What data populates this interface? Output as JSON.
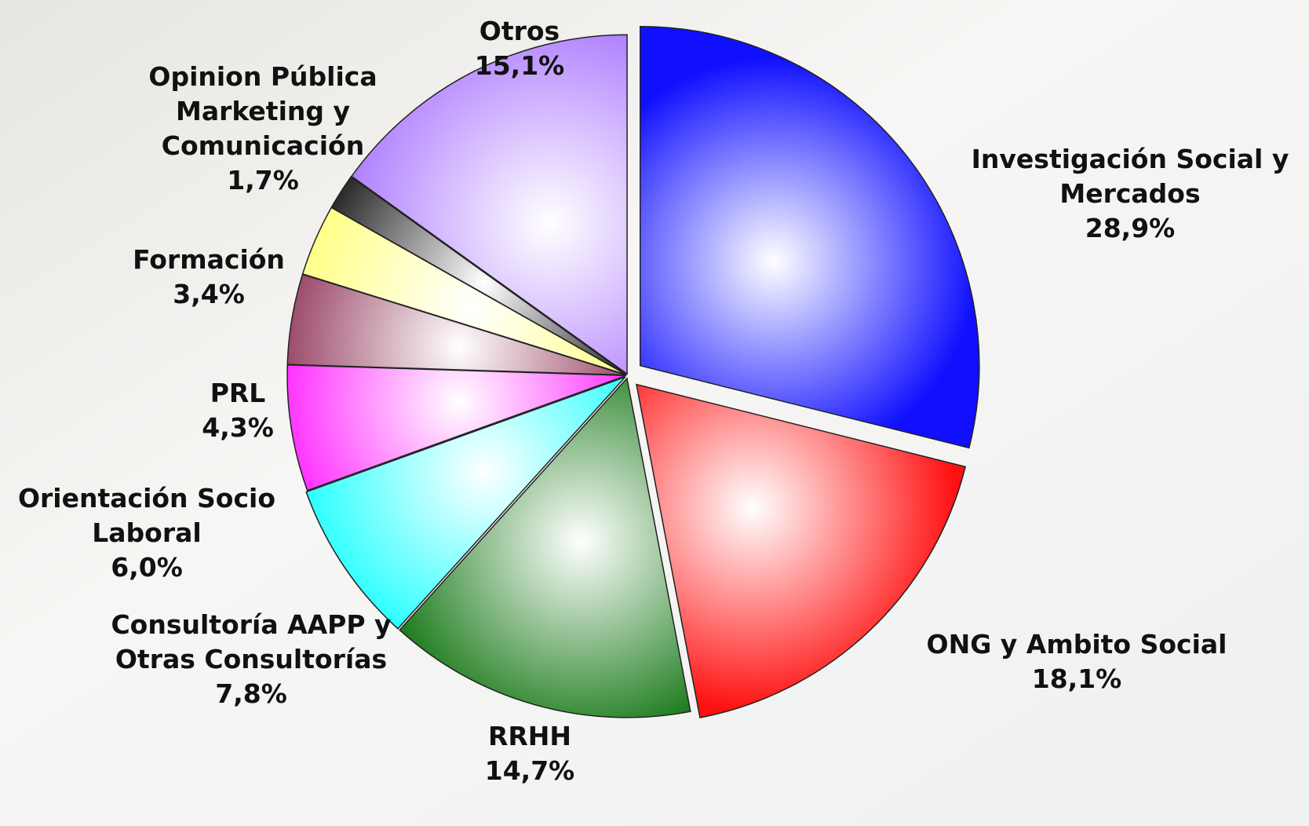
{
  "chart_data": {
    "type": "pie",
    "categories": [
      [
        "Investigación Social y",
        "Mercados"
      ],
      [
        "ONG y Ambito Social"
      ],
      [
        "RRHH"
      ],
      [
        "Consultoría AAPP y",
        "Otras Consultorías"
      ],
      [
        "Orientación Socio",
        "Laboral"
      ],
      [
        "PRL"
      ],
      [
        "Formación"
      ],
      [
        "Opinion Pública",
        "Marketing y",
        "Comunicación"
      ],
      [
        "Otros"
      ]
    ],
    "values": [
      28.9,
      18.1,
      14.7,
      7.8,
      6.0,
      4.3,
      3.4,
      1.7,
      15.1
    ],
    "value_labels": [
      "28,9%",
      "18,1%",
      "14,7%",
      "7,8%",
      "6,0%",
      "4,3%",
      "3,4%",
      "1,7%",
      "15,1%"
    ],
    "colors": [
      "#1010ff",
      "#ff1010",
      "#1a7a1a",
      "#10ffff",
      "#ff10ff",
      "#8a2a50",
      "#ffff70",
      "#000000",
      "#b080ff"
    ]
  }
}
